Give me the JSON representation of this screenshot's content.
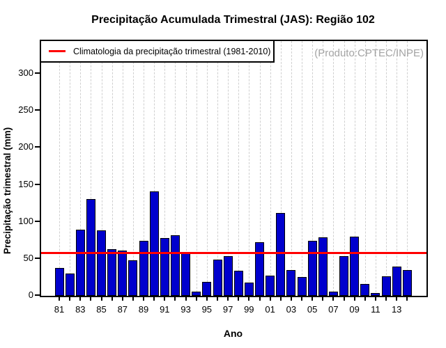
{
  "title": "Precipitação Acumulada Trimestral (JAS): Região 102",
  "watermark": "(Produto:CPTEC/INPE)",
  "legend": {
    "label": "Climatologia da precipitação trimestral (1981-2010)",
    "line_color": "#ff0000",
    "position": "topleft"
  },
  "axes": {
    "x_label": "Ano",
    "y_label": "Precipitação trimestral (mm)",
    "y_tick_labels": [
      "0",
      "50",
      "100",
      "150",
      "200",
      "250",
      "300"
    ],
    "x_tick_labels": [
      "81",
      "83",
      "85",
      "87",
      "89",
      "91",
      "93",
      "95",
      "97",
      "99",
      "01",
      "03",
      "05",
      "07",
      "09",
      "11",
      "13"
    ]
  },
  "chart_data": {
    "type": "bar",
    "title": "Precipitação Acumulada Trimestral (JAS): Região 102",
    "xlabel": "Ano",
    "ylabel": "Precipitação trimestral (mm)",
    "x": [
      1981,
      1982,
      1983,
      1984,
      1985,
      1986,
      1987,
      1988,
      1989,
      1990,
      1991,
      1992,
      1993,
      1994,
      1995,
      1996,
      1997,
      1998,
      1999,
      2000,
      2001,
      2002,
      2003,
      2004,
      2005,
      2006,
      2007,
      2008,
      2009,
      2010,
      2011,
      2012,
      2013,
      2014
    ],
    "values": [
      38,
      30,
      89,
      131,
      88,
      63,
      61,
      48,
      74,
      141,
      78,
      82,
      58,
      6,
      19,
      49,
      54,
      34,
      18,
      72,
      27,
      112,
      35,
      25,
      74,
      79,
      6,
      54,
      80,
      16,
      4,
      26,
      40,
      35
    ],
    "climatology_value": 58,
    "climatology_label": "Climatologia da precipitação trimestral (1981-2010)",
    "ylim": [
      0,
      344
    ],
    "yticks": [
      0,
      50,
      100,
      150,
      200,
      250,
      300
    ],
    "grid": "vertical dashed line per year",
    "legend_position": "topleft",
    "colors": {
      "bar_fill": "#0000cd",
      "bar_border": "#000000",
      "climatology_line": "#ff0000",
      "grid": "#cfcfcf",
      "watermark_text": "#a3a3a3"
    }
  }
}
